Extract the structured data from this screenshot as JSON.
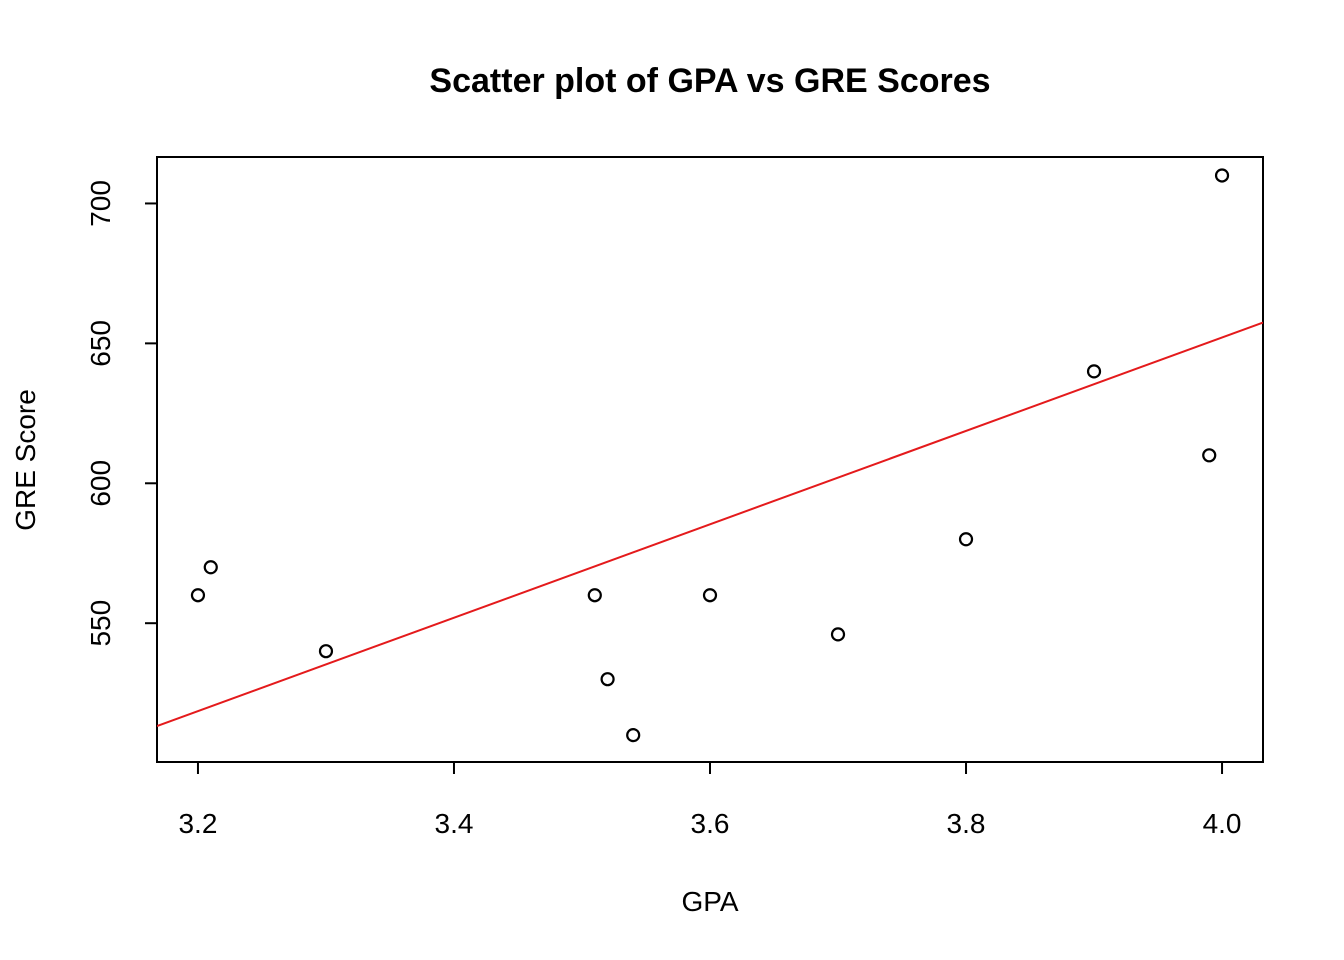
{
  "chart_data": {
    "type": "scatter",
    "title": "Scatter plot of GPA vs GRE Scores",
    "xlabel": "GPA",
    "ylabel": "GRE Score",
    "xlim": [
      3.168,
      4.032
    ],
    "ylim": [
      500.4,
      716.6
    ],
    "x_ticks": [
      3.2,
      3.4,
      3.6,
      3.8,
      4.0
    ],
    "x_tick_labels": [
      "3.2",
      "3.4",
      "3.6",
      "3.8",
      "4.0"
    ],
    "y_ticks": [
      550,
      600,
      650,
      700
    ],
    "y_tick_labels": [
      "550",
      "600",
      "650",
      "700"
    ],
    "grid": false,
    "points": [
      {
        "x": 3.2,
        "y": 560
      },
      {
        "x": 3.21,
        "y": 570
      },
      {
        "x": 3.3,
        "y": 540
      },
      {
        "x": 3.51,
        "y": 560
      },
      {
        "x": 3.52,
        "y": 530
      },
      {
        "x": 3.54,
        "y": 510
      },
      {
        "x": 3.6,
        "y": 560
      },
      {
        "x": 3.7,
        "y": 546
      },
      {
        "x": 3.8,
        "y": 580
      },
      {
        "x": 3.9,
        "y": 640
      },
      {
        "x": 3.99,
        "y": 610
      },
      {
        "x": 4.0,
        "y": 710
      }
    ],
    "regression_line": {
      "intercept": -15.5,
      "slope": 166.9,
      "color": "#e41a1c"
    },
    "point_color": "#000000"
  }
}
